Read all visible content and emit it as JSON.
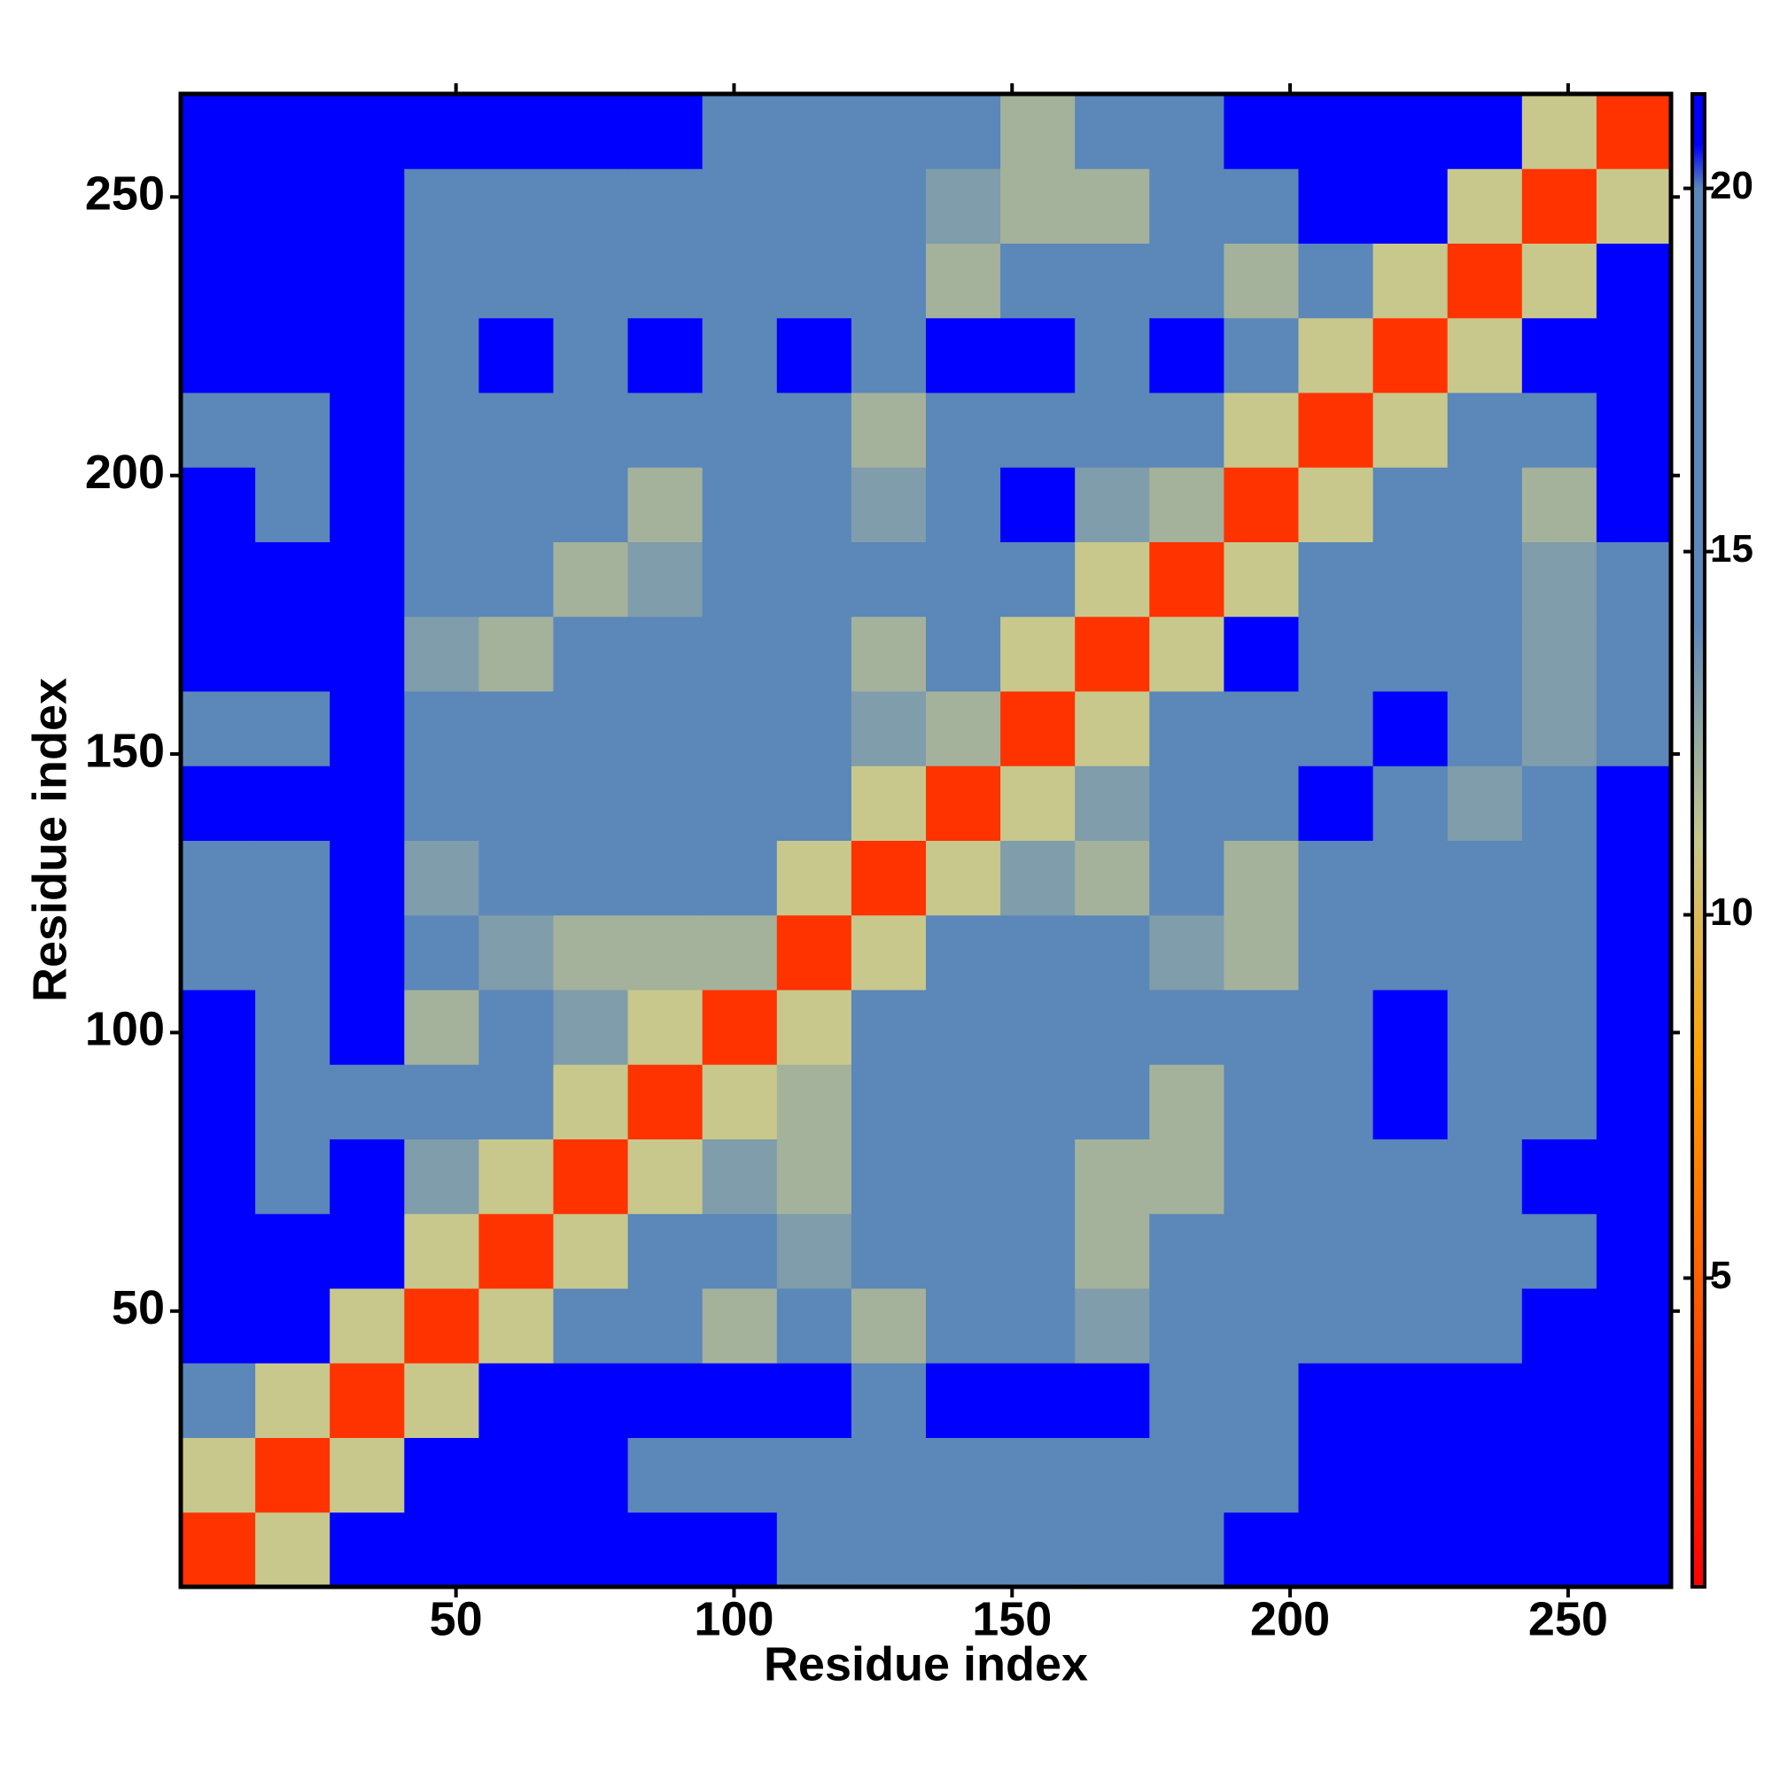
{
  "chart_data": {
    "type": "heatmap",
    "xlabel": "Residue index",
    "ylabel": "Residue index",
    "xlim": [
      0.5,
      268.5
    ],
    "ylim": [
      0.5,
      268.5
    ],
    "xticks": [
      50,
      100,
      150,
      200,
      250
    ],
    "yticks": [
      50,
      100,
      150,
      200,
      250
    ],
    "xbins": [
      0.5,
      13.9,
      27.3,
      40.7,
      54.1,
      67.5,
      80.9,
      94.3,
      107.7,
      121.1,
      134.5,
      147.9,
      161.3,
      174.7,
      188.1,
      201.5,
      214.9,
      228.3,
      241.7,
      255.1,
      268.5
    ],
    "ybins": [
      0.5,
      13.9,
      27.3,
      40.7,
      54.1,
      67.5,
      80.9,
      94.3,
      107.7,
      121.1,
      134.5,
      147.9,
      161.3,
      174.7,
      188.1,
      201.5,
      214.9,
      228.3,
      241.7,
      255.1,
      268.5
    ],
    "z": [
      [
        3,
        11,
        21,
        21,
        21,
        21,
        21,
        21,
        19,
        19,
        19,
        17,
        17,
        19,
        21,
        21,
        21,
        21,
        21,
        21
      ],
      [
        11,
        3,
        11,
        21,
        21,
        21,
        19,
        19,
        19,
        19,
        19,
        17,
        17,
        19,
        19,
        21,
        21,
        21,
        21,
        21
      ],
      [
        19,
        11,
        3,
        11,
        21,
        21,
        21,
        21,
        21,
        19,
        21,
        21,
        21,
        19,
        19,
        21,
        21,
        21,
        21,
        21
      ],
      [
        21,
        21,
        11,
        3,
        11,
        17,
        17,
        12,
        17,
        12,
        17,
        17,
        13,
        17,
        17,
        17,
        19,
        17,
        21,
        21
      ],
      [
        21,
        21,
        21,
        11,
        3,
        11,
        17,
        17,
        13,
        17,
        17,
        19,
        12,
        17,
        17,
        17,
        17,
        17,
        19,
        21
      ],
      [
        21,
        19,
        21,
        13,
        11,
        3,
        11,
        13,
        12,
        17,
        17,
        17,
        12,
        12,
        17,
        19,
        17,
        17,
        21,
        21
      ],
      [
        21,
        19,
        19,
        17,
        17,
        11,
        3,
        11,
        12,
        17,
        17,
        17,
        17,
        12,
        17,
        19,
        21,
        17,
        19,
        21
      ],
      [
        21,
        19,
        21,
        12,
        17,
        13,
        11,
        3,
        11,
        17,
        17,
        17,
        17,
        17,
        17,
        19,
        21,
        17,
        17,
        21
      ],
      [
        19,
        19,
        21,
        17,
        13,
        12,
        12,
        12,
        3,
        11,
        17,
        17,
        17,
        13,
        12,
        19,
        19,
        17,
        17,
        21
      ],
      [
        19,
        19,
        21,
        13,
        17,
        17,
        17,
        17,
        11,
        3,
        11,
        13,
        12,
        17,
        12,
        19,
        19,
        17,
        17,
        21
      ],
      [
        21,
        21,
        21,
        17,
        17,
        17,
        17,
        17,
        17,
        11,
        3,
        11,
        13,
        17,
        17,
        21,
        19,
        13,
        17,
        21
      ],
      [
        19,
        19,
        21,
        17,
        17,
        17,
        17,
        17,
        17,
        13,
        12,
        3,
        11,
        17,
        17,
        17,
        21,
        17,
        13,
        17
      ],
      [
        21,
        21,
        21,
        13,
        12,
        17,
        17,
        17,
        17,
        12,
        17,
        11,
        3,
        11,
        21,
        17,
        19,
        17,
        13,
        17
      ],
      [
        21,
        21,
        21,
        17,
        17,
        12,
        13,
        17,
        17,
        17,
        17,
        17,
        11,
        3,
        11,
        17,
        19,
        17,
        13,
        17
      ],
      [
        21,
        19,
        21,
        17,
        17,
        17,
        12,
        17,
        17,
        13,
        17,
        21,
        13,
        12,
        3,
        11,
        19,
        17,
        12,
        21
      ],
      [
        19,
        19,
        21,
        17,
        17,
        17,
        17,
        17,
        17,
        12,
        17,
        17,
        17,
        17,
        11,
        3,
        11,
        17,
        17,
        21
      ],
      [
        21,
        21,
        21,
        19,
        21,
        19,
        21,
        19,
        21,
        19,
        21,
        21,
        19,
        21,
        19,
        11,
        3,
        11,
        21,
        21
      ],
      [
        21,
        21,
        21,
        17,
        19,
        17,
        17,
        17,
        17,
        17,
        12,
        17,
        17,
        17,
        12,
        17,
        11,
        3,
        11,
        21
      ],
      [
        21,
        21,
        21,
        17,
        17,
        17,
        17,
        17,
        17,
        17,
        13,
        12,
        12,
        17,
        17,
        21,
        21,
        11,
        3,
        11
      ],
      [
        21,
        21,
        21,
        21,
        21,
        21,
        21,
        17,
        19,
        17,
        17,
        12,
        17,
        17,
        21,
        21,
        21,
        21,
        11,
        3
      ]
    ],
    "zlim": [
      0.75,
      21.3
    ],
    "zticks": [
      5,
      10,
      15,
      20
    ],
    "colorscale": [
      {
        "value": 0.75,
        "color": "#ff0000"
      },
      {
        "value": 5,
        "color": "#ff6000"
      },
      {
        "value": 8,
        "color": "#ffa000"
      },
      {
        "value": 11,
        "color": "#c8c88c"
      },
      {
        "value": 14,
        "color": "#5b87b9"
      },
      {
        "value": 20,
        "color": "#5b87b9"
      },
      {
        "value": 20.6,
        "color": "#0000ff"
      },
      {
        "value": 21.3,
        "color": "#0000ff"
      }
    ]
  }
}
